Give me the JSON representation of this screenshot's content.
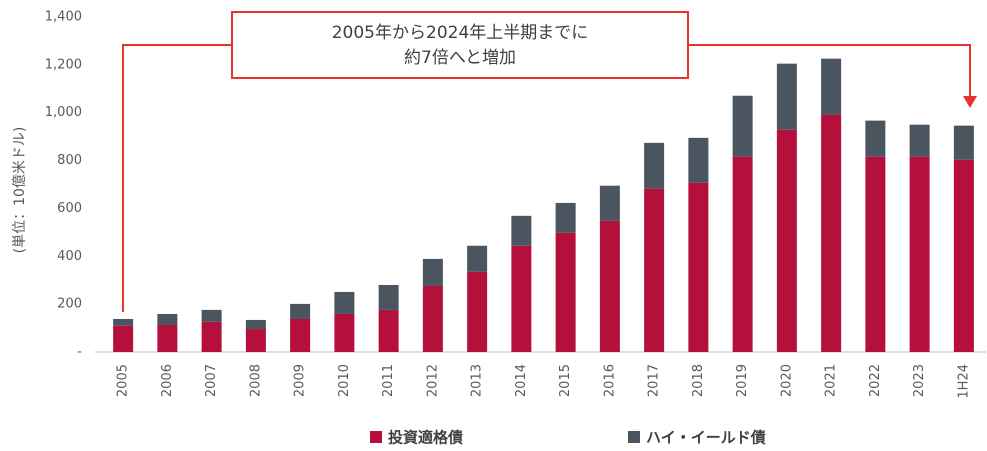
{
  "chart_data": {
    "type": "stacked_bar",
    "y_label": "(単位：10億米ドル)",
    "annotation": [
      "2005年から2024年上半期までに",
      "約7倍へと増加"
    ],
    "categories": [
      "2005",
      "2006",
      "2007",
      "2008",
      "2009",
      "2010",
      "2011",
      "2012",
      "2013",
      "2014",
      "2015",
      "2016",
      "2017",
      "2018",
      "2019",
      "2020",
      "2021",
      "2022",
      "2023",
      "1H24"
    ],
    "series": [
      {
        "name": "投資適格債",
        "color": "#b5103c",
        "values": [
          110,
          113,
          126,
          96,
          138,
          159,
          176,
          276,
          335,
          444,
          498,
          548,
          682,
          707,
          816,
          929,
          992,
          816,
          816,
          803
        ]
      },
      {
        "name": "ハイ・イールド債",
        "color": "#4a5560",
        "values": [
          28,
          46,
          50,
          38,
          63,
          92,
          104,
          113,
          109,
          125,
          125,
          147,
          192,
          188,
          255,
          276,
          234,
          151,
          134,
          143
        ]
      }
    ],
    "ylim": [
      0,
      1400
    ],
    "yticks": [
      {
        "value": 0,
        "label": "-"
      },
      200,
      400,
      600,
      800,
      {
        "value": 1000,
        "label": "1,000"
      },
      {
        "value": 1200,
        "label": "1,200"
      },
      {
        "value": 1400,
        "label": "1,400"
      }
    ],
    "grid": false
  }
}
